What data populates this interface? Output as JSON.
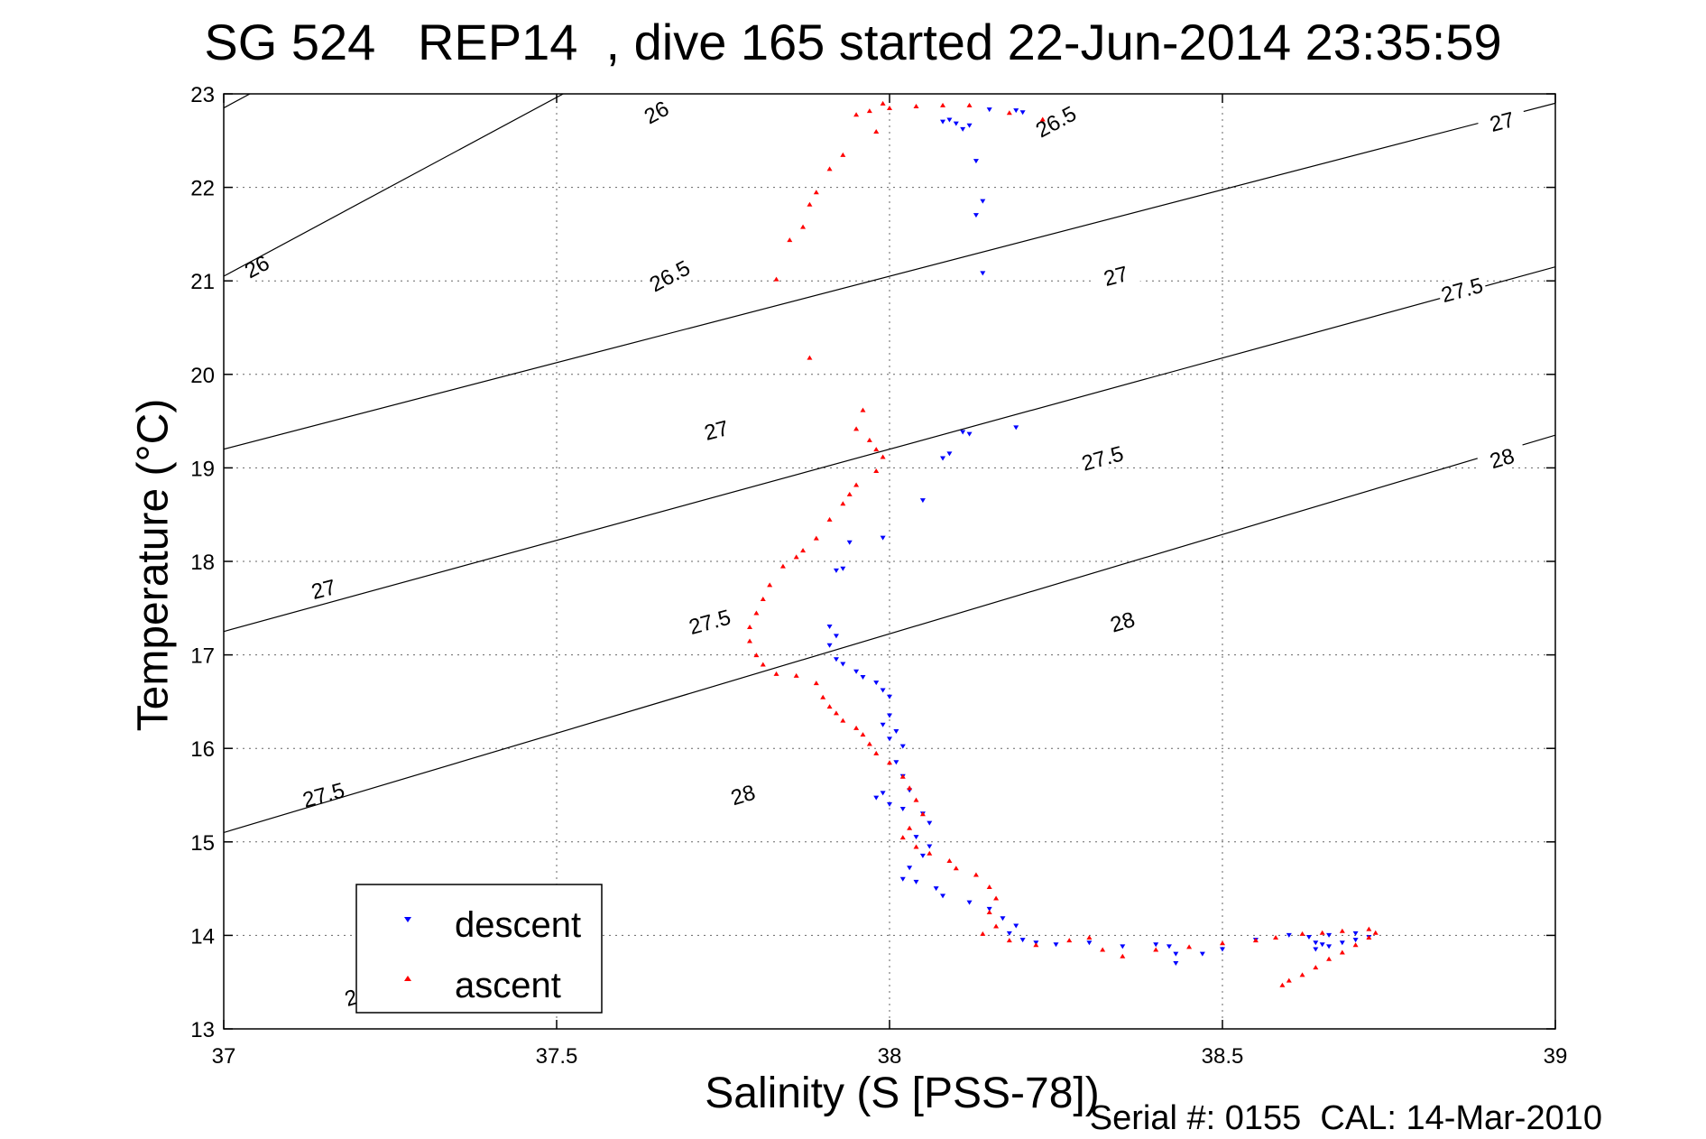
{
  "title": "SG 524   REP14  , dive 165 started 22-Jun-2014 23:35:59",
  "footer": "Serial #: 0155  CAL: 14-Mar-2010",
  "colors": {
    "descent": "#0000ff",
    "ascent": "#ff0000",
    "contour": "#000000",
    "grid": "#000000"
  },
  "chart_data": {
    "type": "scatter",
    "title": "SG 524   REP14  , dive 165 started 22-Jun-2014 23:35:59",
    "xlabel": "Salinity (S [PSS-78])",
    "ylabel": "Temperature (°C)",
    "xlim": [
      37,
      39
    ],
    "ylim": [
      13,
      23
    ],
    "xticks": [
      "37",
      "37.5",
      "38",
      "38.5",
      "39"
    ],
    "yticks": [
      "13",
      "14",
      "15",
      "16",
      "17",
      "18",
      "19",
      "20",
      "21",
      "22",
      "23"
    ],
    "grid": true,
    "legend": {
      "placement": "bottom-left",
      "entries": [
        "descent",
        "ascent"
      ]
    },
    "contours": [
      {
        "label": "26",
        "line": [
          [
            37.0,
            22.85
          ],
          [
            39.0,
            30.5
          ]
        ],
        "labels_at": [
          [
            37.65,
            22.8
          ],
          [
            37.05,
            21.15
          ]
        ]
      },
      {
        "label": "26.5",
        "line": [
          [
            37.0,
            21.05
          ],
          [
            39.0,
            28.7
          ]
        ],
        "labels_at": [
          [
            38.25,
            22.7
          ],
          [
            37.67,
            21.05
          ]
        ]
      },
      {
        "label": "27",
        "line": [
          [
            37.0,
            19.2
          ],
          [
            39.0,
            22.9
          ]
        ],
        "labels_at": [
          [
            38.92,
            22.7
          ],
          [
            38.34,
            21.05
          ],
          [
            37.74,
            19.4
          ],
          [
            37.15,
            17.7
          ]
        ]
      },
      {
        "label": "27.5",
        "line": [
          [
            37.0,
            17.25
          ],
          [
            39.0,
            21.15
          ]
        ],
        "labels_at": [
          [
            38.86,
            20.9
          ],
          [
            38.32,
            19.1
          ],
          [
            37.73,
            17.35
          ],
          [
            37.15,
            15.5
          ]
        ]
      },
      {
        "label": "28",
        "line": [
          [
            37.0,
            15.1
          ],
          [
            39.0,
            19.35
          ]
        ],
        "labels_at": [
          [
            38.92,
            19.1
          ],
          [
            38.35,
            17.35
          ],
          [
            37.78,
            15.5
          ],
          [
            37.2,
            13.35
          ]
        ]
      }
    ],
    "series": [
      {
        "name": "descent",
        "marker": "v",
        "points": [
          [
            38.15,
            22.83
          ],
          [
            38.19,
            22.82
          ],
          [
            38.2,
            22.8
          ],
          [
            38.09,
            22.72
          ],
          [
            38.08,
            22.7
          ],
          [
            38.1,
            22.68
          ],
          [
            38.12,
            22.66
          ],
          [
            38.11,
            22.62
          ],
          [
            38.13,
            22.28
          ],
          [
            38.14,
            21.85
          ],
          [
            38.13,
            21.7
          ],
          [
            38.14,
            21.08
          ],
          [
            38.19,
            19.43
          ],
          [
            38.11,
            19.38
          ],
          [
            38.12,
            19.36
          ],
          [
            38.09,
            19.15
          ],
          [
            38.08,
            19.1
          ],
          [
            38.05,
            18.65
          ],
          [
            37.99,
            18.25
          ],
          [
            37.94,
            18.2
          ],
          [
            37.93,
            17.92
          ],
          [
            37.92,
            17.9
          ],
          [
            37.91,
            17.3
          ],
          [
            37.92,
            17.2
          ],
          [
            37.91,
            17.1
          ],
          [
            37.92,
            16.95
          ],
          [
            37.93,
            16.9
          ],
          [
            37.95,
            16.82
          ],
          [
            37.96,
            16.76
          ],
          [
            37.98,
            16.7
          ],
          [
            37.99,
            16.62
          ],
          [
            38.0,
            16.55
          ],
          [
            38.0,
            16.35
          ],
          [
            37.99,
            16.25
          ],
          [
            38.01,
            16.18
          ],
          [
            38.0,
            16.1
          ],
          [
            38.02,
            16.02
          ],
          [
            38.01,
            15.85
          ],
          [
            38.02,
            15.7
          ],
          [
            38.03,
            15.55
          ],
          [
            37.99,
            15.52
          ],
          [
            37.98,
            15.47
          ],
          [
            38.0,
            15.4
          ],
          [
            38.02,
            15.35
          ],
          [
            38.05,
            15.3
          ],
          [
            38.06,
            15.2
          ],
          [
            38.04,
            15.05
          ],
          [
            38.06,
            14.95
          ],
          [
            38.05,
            14.85
          ],
          [
            38.03,
            14.72
          ],
          [
            38.02,
            14.6
          ],
          [
            38.04,
            14.57
          ],
          [
            38.07,
            14.5
          ],
          [
            38.08,
            14.42
          ],
          [
            38.12,
            14.35
          ],
          [
            38.15,
            14.28
          ],
          [
            38.17,
            14.18
          ],
          [
            38.19,
            14.1
          ],
          [
            38.18,
            14.02
          ],
          [
            38.2,
            13.95
          ],
          [
            38.22,
            13.92
          ],
          [
            38.25,
            13.9
          ],
          [
            38.3,
            13.92
          ],
          [
            38.35,
            13.88
          ],
          [
            38.4,
            13.9
          ],
          [
            38.42,
            13.88
          ],
          [
            38.43,
            13.8
          ],
          [
            38.43,
            13.7
          ],
          [
            38.47,
            13.8
          ],
          [
            38.5,
            13.85
          ],
          [
            38.55,
            13.95
          ],
          [
            38.6,
            14.0
          ],
          [
            38.63,
            13.98
          ],
          [
            38.64,
            13.92
          ],
          [
            38.64,
            13.85
          ],
          [
            38.66,
            13.88
          ],
          [
            38.68,
            13.92
          ],
          [
            38.7,
            13.95
          ],
          [
            38.72,
            13.98
          ],
          [
            38.7,
            14.02
          ],
          [
            38.66,
            14.0
          ],
          [
            38.65,
            13.9
          ]
        ]
      },
      {
        "name": "ascent",
        "marker": "^",
        "points": [
          [
            38.23,
            22.73
          ],
          [
            38.18,
            22.8
          ],
          [
            38.12,
            22.88
          ],
          [
            38.08,
            22.88
          ],
          [
            38.04,
            22.87
          ],
          [
            38.0,
            22.85
          ],
          [
            37.97,
            22.82
          ],
          [
            37.95,
            22.78
          ],
          [
            37.99,
            22.9
          ],
          [
            37.98,
            22.6
          ],
          [
            37.93,
            22.35
          ],
          [
            37.91,
            22.2
          ],
          [
            37.89,
            21.95
          ],
          [
            37.88,
            21.82
          ],
          [
            37.87,
            21.58
          ],
          [
            37.85,
            21.44
          ],
          [
            37.83,
            21.02
          ],
          [
            37.88,
            20.18
          ],
          [
            37.96,
            19.62
          ],
          [
            37.95,
            19.42
          ],
          [
            37.97,
            19.3
          ],
          [
            37.98,
            19.2
          ],
          [
            37.99,
            19.12
          ],
          [
            37.98,
            18.97
          ],
          [
            37.95,
            18.82
          ],
          [
            37.94,
            18.72
          ],
          [
            37.93,
            18.62
          ],
          [
            37.91,
            18.45
          ],
          [
            37.89,
            18.25
          ],
          [
            37.87,
            18.12
          ],
          [
            37.86,
            18.05
          ],
          [
            37.84,
            17.95
          ],
          [
            37.82,
            17.75
          ],
          [
            37.81,
            17.6
          ],
          [
            37.8,
            17.45
          ],
          [
            37.79,
            17.3
          ],
          [
            37.79,
            17.15
          ],
          [
            37.8,
            17.0
          ],
          [
            37.81,
            16.9
          ],
          [
            37.83,
            16.8
          ],
          [
            37.86,
            16.78
          ],
          [
            37.89,
            16.7
          ],
          [
            37.9,
            16.55
          ],
          [
            37.91,
            16.45
          ],
          [
            37.92,
            16.38
          ],
          [
            37.93,
            16.3
          ],
          [
            37.95,
            16.22
          ],
          [
            37.96,
            16.15
          ],
          [
            37.97,
            16.05
          ],
          [
            37.98,
            15.95
          ],
          [
            38.0,
            15.85
          ],
          [
            38.02,
            15.7
          ],
          [
            38.03,
            15.58
          ],
          [
            38.04,
            15.45
          ],
          [
            38.05,
            15.3
          ],
          [
            38.03,
            15.15
          ],
          [
            38.02,
            15.05
          ],
          [
            38.04,
            14.95
          ],
          [
            38.06,
            14.88
          ],
          [
            38.09,
            14.8
          ],
          [
            38.1,
            14.72
          ],
          [
            38.13,
            14.65
          ],
          [
            38.15,
            14.52
          ],
          [
            38.16,
            14.4
          ],
          [
            38.15,
            14.25
          ],
          [
            38.16,
            14.1
          ],
          [
            38.14,
            14.02
          ],
          [
            38.18,
            13.95
          ],
          [
            38.22,
            13.9
          ],
          [
            38.27,
            13.95
          ],
          [
            38.3,
            13.98
          ],
          [
            38.32,
            13.85
          ],
          [
            38.35,
            13.78
          ],
          [
            38.4,
            13.85
          ],
          [
            38.45,
            13.88
          ],
          [
            38.5,
            13.92
          ],
          [
            38.55,
            13.95
          ],
          [
            38.58,
            13.98
          ],
          [
            38.62,
            14.02
          ],
          [
            38.65,
            14.03
          ],
          [
            38.68,
            14.05
          ],
          [
            38.72,
            14.07
          ],
          [
            38.73,
            14.03
          ],
          [
            38.72,
            13.98
          ],
          [
            38.7,
            13.9
          ],
          [
            38.68,
            13.82
          ],
          [
            38.66,
            13.75
          ],
          [
            38.64,
            13.66
          ],
          [
            38.62,
            13.58
          ],
          [
            38.6,
            13.52
          ],
          [
            38.59,
            13.47
          ]
        ]
      }
    ]
  }
}
